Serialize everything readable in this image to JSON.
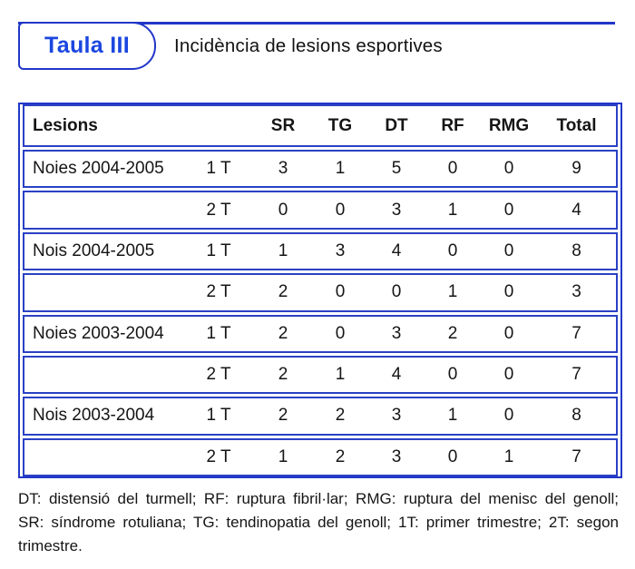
{
  "header": {
    "tab_label": "Taula III",
    "title": "Incidència de lesions esportives"
  },
  "colors": {
    "accent_blue": "#2137c8",
    "tab_text_blue": "#1b46e0",
    "body_text": "#151515"
  },
  "table": {
    "columns": [
      "Lesions",
      "",
      "SR",
      "TG",
      "DT",
      "RF",
      "RMG",
      "Total"
    ],
    "rows": [
      {
        "group": "Noies 2004-2005",
        "period": "1 T",
        "values": [
          3,
          1,
          5,
          0,
          0,
          9
        ]
      },
      {
        "group": "",
        "period": "2 T",
        "values": [
          0,
          0,
          3,
          1,
          0,
          4
        ]
      },
      {
        "group": "Nois 2004-2005",
        "period": "1 T",
        "values": [
          1,
          3,
          4,
          0,
          0,
          8
        ]
      },
      {
        "group": "",
        "period": "2 T",
        "values": [
          2,
          0,
          0,
          1,
          0,
          3
        ]
      },
      {
        "group": "Noies 2003-2004",
        "period": "1 T",
        "values": [
          2,
          0,
          3,
          2,
          0,
          7
        ]
      },
      {
        "group": "",
        "period": "2 T",
        "values": [
          2,
          1,
          4,
          0,
          0,
          7
        ]
      },
      {
        "group": "Nois 2003-2004",
        "period": "1 T",
        "values": [
          2,
          2,
          3,
          1,
          0,
          8
        ]
      },
      {
        "group": "",
        "period": "2 T",
        "values": [
          1,
          2,
          3,
          0,
          1,
          7
        ]
      }
    ]
  },
  "footnote": {
    "lines": [
      "DT: distensió del turmell; RF: ruptura fibril·lar; RMG: ruptura del menisc del genoll;",
      "SR: síndrome rotuliana; TG: tendinopatia del genoll; 1T: primer trimestre; 2T: segon",
      "trimestre."
    ]
  }
}
